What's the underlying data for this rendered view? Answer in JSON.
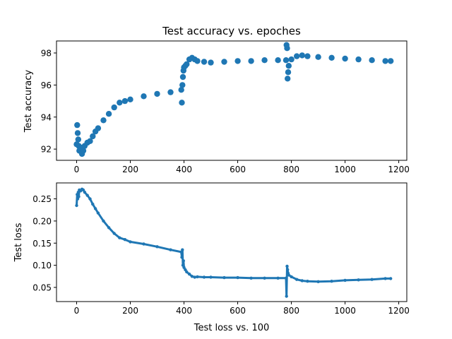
{
  "chart_data": [
    {
      "type": "scatter",
      "title": "Test accuracy vs. epoches",
      "xlabel": "",
      "ylabel": "Test accuracy",
      "xlim": [
        -75,
        1230
      ],
      "ylim": [
        91.3,
        98.75
      ],
      "xticks": [
        0,
        200,
        400,
        600,
        800,
        1000,
        1200
      ],
      "yticks": [
        92,
        94,
        96,
        98
      ],
      "x_tick_labels": [
        "0",
        "200",
        "400",
        "600",
        "800",
        "1000",
        "1200"
      ],
      "y_tick_labels": [
        "92",
        "94",
        "96",
        "98"
      ],
      "grid": false,
      "color": "#1f77b4",
      "marker": "circle",
      "series": [
        {
          "x": [
            0,
            2,
            4,
            6,
            8,
            10,
            15,
            20,
            25,
            30,
            40,
            50,
            60,
            70,
            80,
            100,
            120,
            140,
            160,
            180,
            200,
            250,
            300,
            350,
            390,
            392,
            394,
            396,
            398,
            400,
            405,
            410,
            420,
            430,
            440,
            450,
            475,
            500,
            550,
            600,
            650,
            700,
            750,
            780,
            782,
            784,
            786,
            788,
            790,
            800,
            820,
            840,
            860,
            900,
            950,
            1000,
            1050,
            1100,
            1150,
            1170
          ],
          "y": [
            92.3,
            93.5,
            93.0,
            92.6,
            92.2,
            91.9,
            92.1,
            91.7,
            91.9,
            92.2,
            92.4,
            92.5,
            92.8,
            93.1,
            93.3,
            93.8,
            94.2,
            94.6,
            94.9,
            95.0,
            95.1,
            95.3,
            95.45,
            95.55,
            95.7,
            94.9,
            96.0,
            96.5,
            96.9,
            97.1,
            97.2,
            97.3,
            97.6,
            97.7,
            97.6,
            97.5,
            97.45,
            97.4,
            97.45,
            97.5,
            97.5,
            97.55,
            97.55,
            97.55,
            98.5,
            98.3,
            96.4,
            96.8,
            97.2,
            97.6,
            97.8,
            97.85,
            97.8,
            97.75,
            97.7,
            97.65,
            97.6,
            97.55,
            97.5,
            97.5
          ]
        }
      ]
    },
    {
      "type": "line",
      "title": "",
      "xlabel": "Test loss vs. 100",
      "ylabel": "Test loss",
      "xlim": [
        -75,
        1230
      ],
      "ylim": [
        0.018,
        0.286
      ],
      "xticks": [
        0,
        200,
        400,
        600,
        800,
        1000,
        1200
      ],
      "yticks": [
        0.05,
        0.1,
        0.15,
        0.2,
        0.25
      ],
      "x_tick_labels": [
        "0",
        "200",
        "400",
        "600",
        "800",
        "1000",
        "1200"
      ],
      "y_tick_labels": [
        "0.05",
        "0.10",
        "0.15",
        "0.20",
        "0.25"
      ],
      "grid": false,
      "color": "#1f77b4",
      "marker": "dot",
      "series": [
        {
          "x": [
            0,
            2,
            4,
            6,
            8,
            10,
            15,
            20,
            25,
            30,
            40,
            50,
            60,
            70,
            80,
            100,
            120,
            140,
            160,
            180,
            200,
            250,
            300,
            350,
            390,
            392,
            394,
            396,
            398,
            400,
            405,
            410,
            420,
            430,
            440,
            450,
            475,
            500,
            550,
            600,
            650,
            700,
            750,
            780,
            782,
            784,
            786,
            788,
            790,
            800,
            820,
            840,
            860,
            900,
            950,
            1000,
            1050,
            1100,
            1150,
            1170
          ],
          "y": [
            0.235,
            0.26,
            0.25,
            0.265,
            0.255,
            0.27,
            0.268,
            0.272,
            0.27,
            0.265,
            0.258,
            0.25,
            0.238,
            0.228,
            0.218,
            0.2,
            0.185,
            0.172,
            0.162,
            0.158,
            0.153,
            0.148,
            0.142,
            0.135,
            0.13,
            0.118,
            0.135,
            0.1,
            0.11,
            0.095,
            0.09,
            0.085,
            0.08,
            0.075,
            0.073,
            0.074,
            0.073,
            0.073,
            0.072,
            0.072,
            0.071,
            0.071,
            0.071,
            0.071,
            0.03,
            0.098,
            0.09,
            0.082,
            0.078,
            0.074,
            0.068,
            0.065,
            0.064,
            0.063,
            0.064,
            0.066,
            0.067,
            0.068,
            0.07,
            0.07
          ]
        }
      ]
    }
  ]
}
